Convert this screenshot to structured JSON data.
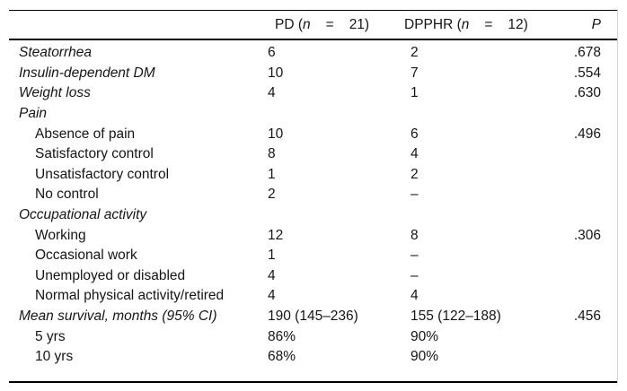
{
  "table": {
    "header": {
      "pd": {
        "prefix": "PD (",
        "n": "n",
        "equals": "=",
        "count": "21)"
      },
      "dpphr": {
        "prefix": "DPPHR (",
        "n": "n",
        "equals": "=",
        "count": "12)"
      },
      "p": "P"
    },
    "rows": [
      {
        "label": "Steatorrhea",
        "indent": false,
        "italic": true,
        "pd": "6",
        "dpphr": "2",
        "p": ".678"
      },
      {
        "label": "Insulin-dependent DM",
        "indent": false,
        "italic": true,
        "pd": "10",
        "dpphr": "7",
        "p": ".554"
      },
      {
        "label": "Weight loss",
        "indent": false,
        "italic": true,
        "pd": "4",
        "dpphr": "1",
        "p": ".630"
      },
      {
        "label": "Pain",
        "indent": false,
        "italic": true,
        "pd": "",
        "dpphr": "",
        "p": ""
      },
      {
        "label": "Absence of pain",
        "indent": true,
        "italic": false,
        "pd": "10",
        "dpphr": "6",
        "p": ".496"
      },
      {
        "label": "Satisfactory control",
        "indent": true,
        "italic": false,
        "pd": "8",
        "dpphr": "4",
        "p": ""
      },
      {
        "label": "Unsatisfactory control",
        "indent": true,
        "italic": false,
        "pd": "1",
        "dpphr": "2",
        "p": ""
      },
      {
        "label": "No control",
        "indent": true,
        "italic": false,
        "pd": "2",
        "dpphr": "–",
        "p": ""
      },
      {
        "label": "Occupational activity",
        "indent": false,
        "italic": true,
        "pd": "",
        "dpphr": "",
        "p": ""
      },
      {
        "label": "Working",
        "indent": true,
        "italic": false,
        "pd": "12",
        "dpphr": "8",
        "p": ".306"
      },
      {
        "label": "Occasional work",
        "indent": true,
        "italic": false,
        "pd": "1",
        "dpphr": "–",
        "p": ""
      },
      {
        "label": "Unemployed or disabled",
        "indent": true,
        "italic": false,
        "pd": "4",
        "dpphr": "–",
        "p": ""
      },
      {
        "label": "Normal physical activity/retired",
        "indent": true,
        "italic": false,
        "pd": "4",
        "dpphr": "4",
        "p": ""
      },
      {
        "label": "Mean survival, months (95% CI)",
        "indent": false,
        "italic": true,
        "pd": "190 (145–236)",
        "dpphr": "155 (122–188)",
        "p": ".456"
      },
      {
        "label": "5 yrs",
        "indent": true,
        "italic": false,
        "pd": "86%",
        "dpphr": "90%",
        "p": ""
      },
      {
        "label": "10 yrs",
        "indent": true,
        "italic": false,
        "pd": "68%",
        "dpphr": "90%",
        "p": ""
      }
    ]
  },
  "colors": {
    "rule": "#000000",
    "text": "#151515",
    "scan_edge_artifact": "#d5d5d5"
  }
}
